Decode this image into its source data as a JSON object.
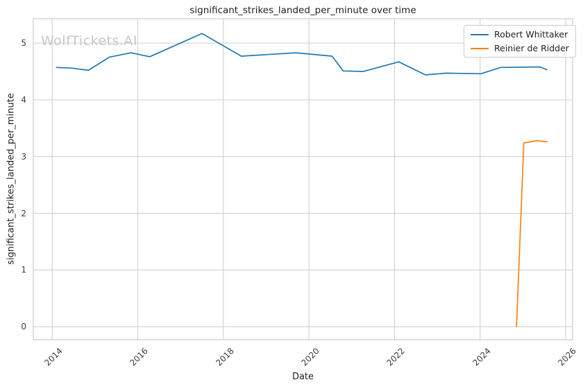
{
  "watermark": "WolfTickets.AI",
  "chart_data": {
    "type": "line",
    "title": "significant_strikes_landed_per_minute over time",
    "xlabel": "Date",
    "ylabel": "significant_strikes_landed_per_minute",
    "xlim": [
      2013.56,
      2026.16
    ],
    "ylim": [
      -0.23,
      5.43
    ],
    "xticks": [
      2014,
      2016,
      2018,
      2020,
      2022,
      2024,
      2026
    ],
    "yticks": [
      0,
      1,
      2,
      3,
      4,
      5
    ],
    "grid": true,
    "legend_position": "top-right",
    "colors": {
      "grid": "#cccccc",
      "spine": "#cccccc",
      "text": "#1f1f1f",
      "tick_text": "#3d3d3d",
      "watermark": "#c8c8c8"
    },
    "series": [
      {
        "name": "Robert Whittaker",
        "color": "#1f77b4",
        "points": [
          [
            2014.1,
            4.57
          ],
          [
            2014.46,
            4.56
          ],
          [
            2014.85,
            4.52
          ],
          [
            2015.33,
            4.75
          ],
          [
            2015.84,
            4.83
          ],
          [
            2016.28,
            4.76
          ],
          [
            2017.5,
            5.17
          ],
          [
            2018.42,
            4.77
          ],
          [
            2019.7,
            4.83
          ],
          [
            2020.54,
            4.77
          ],
          [
            2020.8,
            4.51
          ],
          [
            2021.27,
            4.5
          ],
          [
            2022.1,
            4.67
          ],
          [
            2022.72,
            4.44
          ],
          [
            2023.2,
            4.47
          ],
          [
            2024.02,
            4.46
          ],
          [
            2024.48,
            4.57
          ],
          [
            2025.4,
            4.58
          ],
          [
            2025.56,
            4.53
          ]
        ]
      },
      {
        "name": "Reinier de Ridder",
        "color": "#ff7f0e",
        "points": [
          [
            2024.85,
            0.0
          ],
          [
            2025.02,
            3.24
          ],
          [
            2025.33,
            3.28
          ],
          [
            2025.56,
            3.26
          ]
        ]
      }
    ]
  }
}
